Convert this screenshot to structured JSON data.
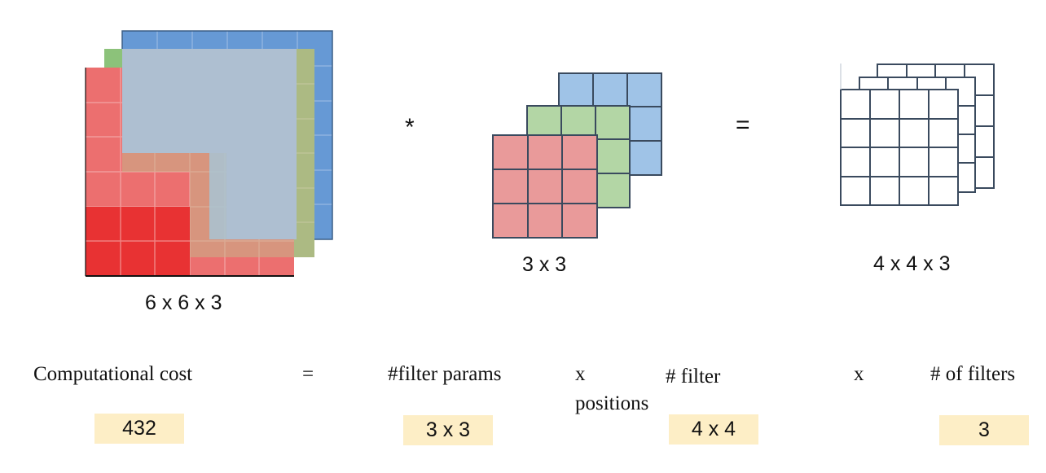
{
  "diagram": {
    "operators": {
      "convolution": "*",
      "equals": "="
    },
    "input": {
      "label": "6 x 6 x 3",
      "colors": [
        "#ec6f6f",
        "#8cc27a",
        "#6699d5"
      ],
      "highlight_color": "#e83233"
    },
    "filter": {
      "label": "3 x 3",
      "colors": [
        "#e99a9a",
        "#b3d6a5",
        "#9fc3e7"
      ]
    },
    "output": {
      "label": "4 x 4 x 3"
    }
  },
  "cost": {
    "heading": "Computational cost",
    "equals": "=",
    "terms": [
      {
        "label": "#filter params",
        "value": "3 x 3"
      },
      {
        "label": "# filter positions",
        "value": "4 x 4"
      },
      {
        "label": "# of filters",
        "value": "3"
      }
    ],
    "times": "x",
    "result": "432",
    "box_color": "#fdeec6"
  }
}
